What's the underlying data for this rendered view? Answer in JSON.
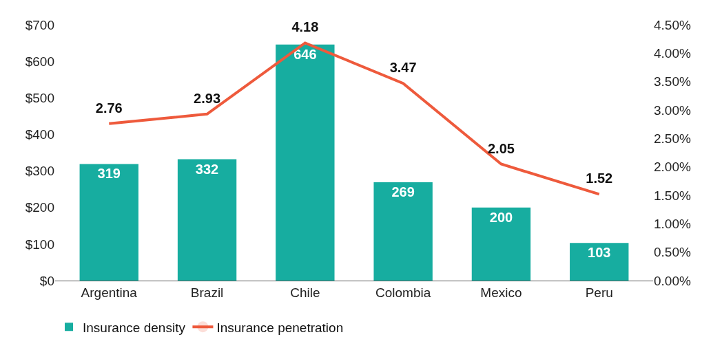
{
  "chart_data": {
    "type": "bar",
    "categories": [
      "Argentina",
      "Brazil",
      "Chile",
      "Colombia",
      "Mexico",
      "Peru"
    ],
    "series": [
      {
        "name": "Insurance density",
        "color": "#17ada0",
        "values": [
          319,
          332,
          646,
          269,
          200,
          103
        ]
      },
      {
        "name": "Insurance penetration",
        "type": "line",
        "axis": "y2",
        "color": "#ee5a3c",
        "values": [
          2.76,
          2.93,
          4.18,
          3.47,
          2.05,
          1.52
        ]
      }
    ],
    "data_labels": true,
    "ylim": [
      0,
      700
    ],
    "yticks": [
      {
        "value": 0,
        "label": "$0"
      },
      {
        "value": 100,
        "label": "$100"
      },
      {
        "value": 200,
        "label": "$200"
      },
      {
        "value": 300,
        "label": "$300"
      },
      {
        "value": 400,
        "label": "$400"
      },
      {
        "value": 500,
        "label": "$500"
      },
      {
        "value": 600,
        "label": "$600"
      },
      {
        "value": 700,
        "label": "$700"
      }
    ],
    "y2lim": [
      0,
      4.5
    ],
    "y2ticks": [
      {
        "value": 0,
        "label": "0.00%"
      },
      {
        "value": 0.5,
        "label": "0.50%"
      },
      {
        "value": 1,
        "label": "1.00%"
      },
      {
        "value": 1.5,
        "label": "1.50%"
      },
      {
        "value": 2,
        "label": "2.00%"
      },
      {
        "value": 2.5,
        "label": "2.50%"
      },
      {
        "value": 3,
        "label": "3.00%"
      },
      {
        "value": 3.5,
        "label": "3.50%"
      },
      {
        "value": 4,
        "label": "4.00%"
      },
      {
        "value": 4.5,
        "label": "4.50%"
      }
    ],
    "grid": false,
    "legend": "bottom left",
    "marker": "none",
    "line_style": "solid"
  }
}
